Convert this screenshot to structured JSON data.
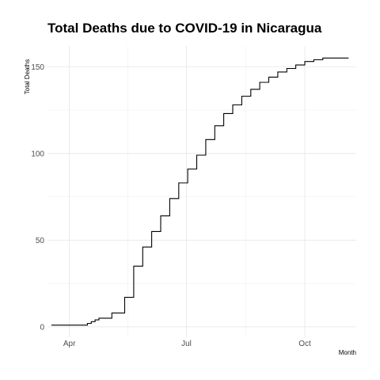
{
  "chart_data": {
    "type": "line",
    "title": "Total Deaths due to COVID-19 in Nicaragua",
    "xlabel": "Month",
    "ylabel": "Total Deaths",
    "x_ticks": [
      {
        "label": "Apr",
        "date": "2020-04-01"
      },
      {
        "label": "Jul",
        "date": "2020-07-01"
      },
      {
        "label": "Oct",
        "date": "2020-10-01"
      }
    ],
    "y_ticks": [
      0,
      50,
      100,
      150
    ],
    "xlim": [
      "2020-03-15",
      "2020-11-10"
    ],
    "ylim": [
      -6,
      162
    ],
    "grid": true,
    "line_color": "#000000",
    "step": true,
    "series": [
      {
        "x": [
          "2020-03-18",
          "2020-04-15",
          "2020-04-18",
          "2020-04-21",
          "2020-04-24",
          "2020-04-27",
          "2020-05-04",
          "2020-05-11",
          "2020-05-14",
          "2020-05-21",
          "2020-05-28",
          "2020-06-04",
          "2020-06-11",
          "2020-06-18",
          "2020-06-25",
          "2020-07-02",
          "2020-07-09",
          "2020-07-16",
          "2020-07-23",
          "2020-07-30",
          "2020-08-06",
          "2020-08-13",
          "2020-08-20",
          "2020-08-27",
          "2020-09-03",
          "2020-09-10",
          "2020-09-17",
          "2020-09-24",
          "2020-10-01",
          "2020-10-08",
          "2020-10-15",
          "2020-10-22",
          "2020-10-29",
          "2020-11-04"
        ],
        "values": [
          1,
          2,
          3,
          4,
          5,
          5,
          8,
          8,
          17,
          35,
          46,
          55,
          64,
          74,
          83,
          91,
          99,
          108,
          116,
          123,
          128,
          133,
          137,
          141,
          144,
          147,
          149,
          151,
          153,
          154,
          155,
          155,
          155,
          155
        ]
      }
    ]
  }
}
